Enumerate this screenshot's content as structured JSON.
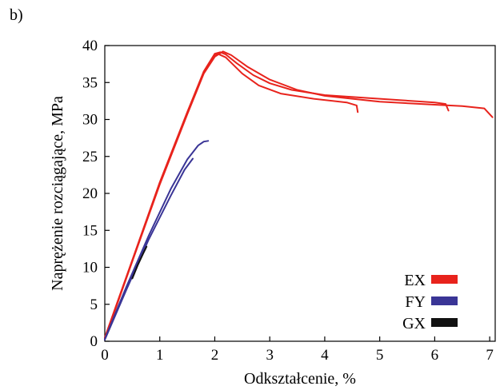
{
  "panel_label": "b)",
  "chart_data": {
    "type": "line",
    "xlabel": "Odkształcenie, %",
    "ylabel": "Naprężenie rozciągające, MPa",
    "xlim": [
      0,
      7.1
    ],
    "ylim": [
      0,
      40
    ],
    "x_ticks": [
      0,
      1,
      2,
      3,
      4,
      5,
      6,
      7
    ],
    "y_ticks": [
      0,
      5,
      10,
      15,
      20,
      25,
      30,
      35,
      40
    ],
    "grid": false,
    "legend_position": "bottom-right",
    "series": [
      {
        "name": "EX",
        "color": "#e8231c",
        "curves": [
          [
            [
              0,
              0.5
            ],
            [
              0.5,
              11
            ],
            [
              1,
              21.5
            ],
            [
              1.5,
              31
            ],
            [
              1.8,
              36.5
            ],
            [
              2,
              38.9
            ],
            [
              2.1,
              39.1
            ],
            [
              2.2,
              38.8
            ],
            [
              2.4,
              37.6
            ],
            [
              2.7,
              36
            ],
            [
              3,
              34.9
            ],
            [
              3.4,
              34
            ],
            [
              4,
              33.3
            ],
            [
              5,
              32.8
            ],
            [
              6,
              32.3
            ],
            [
              6.2,
              32.1
            ],
            [
              6.25,
              31.2
            ]
          ],
          [
            [
              0,
              0.4
            ],
            [
              0.5,
              10.9
            ],
            [
              1,
              21.3
            ],
            [
              1.5,
              30.8
            ],
            [
              1.8,
              36.3
            ],
            [
              2,
              38.6
            ],
            [
              2.05,
              38.9
            ],
            [
              2.2,
              38.4
            ],
            [
              2.5,
              36.2
            ],
            [
              2.8,
              34.6
            ],
            [
              3.2,
              33.5
            ],
            [
              3.8,
              32.8
            ],
            [
              4.4,
              32.3
            ],
            [
              4.58,
              31.9
            ],
            [
              4.6,
              31
            ]
          ],
          [
            [
              0,
              0.3
            ],
            [
              0.5,
              10.8
            ],
            [
              1,
              21.2
            ],
            [
              1.5,
              30.7
            ],
            [
              1.8,
              36.2
            ],
            [
              2,
              38.5
            ],
            [
              2.15,
              39.2
            ],
            [
              2.3,
              38.7
            ],
            [
              2.6,
              37.1
            ],
            [
              3,
              35.4
            ],
            [
              3.5,
              34
            ],
            [
              4,
              33.2
            ],
            [
              5,
              32.4
            ],
            [
              6,
              32
            ],
            [
              6.5,
              31.8
            ],
            [
              6.9,
              31.5
            ],
            [
              7.05,
              30.3
            ]
          ]
        ]
      },
      {
        "name": "FY",
        "color": "#3a3596",
        "curves": [
          [
            [
              0,
              0.3
            ],
            [
              0.4,
              7.5
            ],
            [
              0.8,
              14.3
            ],
            [
              1.2,
              20.6
            ],
            [
              1.5,
              24.6
            ],
            [
              1.7,
              26.5
            ],
            [
              1.8,
              27
            ],
            [
              1.88,
              27.1
            ]
          ],
          [
            [
              0,
              0.2
            ],
            [
              0.4,
              7.1
            ],
            [
              0.8,
              13.8
            ],
            [
              1.2,
              19.7
            ],
            [
              1.45,
              23.2
            ],
            [
              1.6,
              24.7
            ]
          ]
        ]
      },
      {
        "name": "GX",
        "color": "#111111",
        "curves": [
          [
            [
              0.5,
              8.5
            ],
            [
              0.6,
              10.3
            ],
            [
              0.7,
              11.9
            ],
            [
              0.76,
              12.8
            ]
          ]
        ]
      }
    ]
  }
}
